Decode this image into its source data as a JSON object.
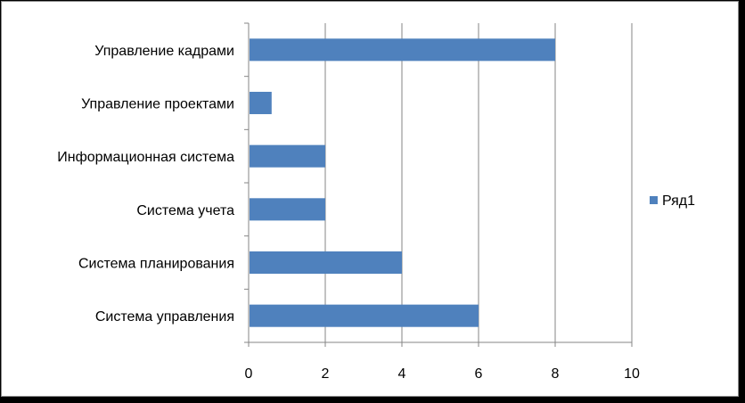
{
  "chart_data": {
    "type": "bar",
    "orientation": "horizontal",
    "categories": [
      "Система управления",
      "Система планирования",
      "Система учета",
      "Информационная система",
      "Управление проектами",
      "Управление кадрами"
    ],
    "series": [
      {
        "name": "Ряд1",
        "values": [
          6,
          4,
          2,
          2,
          0.6,
          8
        ],
        "color": "#4f81bd"
      }
    ],
    "xlim": [
      0,
      10
    ],
    "xticks": [
      0,
      2,
      4,
      6,
      8,
      10
    ],
    "grid": "vertical",
    "legend": "right",
    "title": "",
    "xlabel": "",
    "ylabel": ""
  }
}
